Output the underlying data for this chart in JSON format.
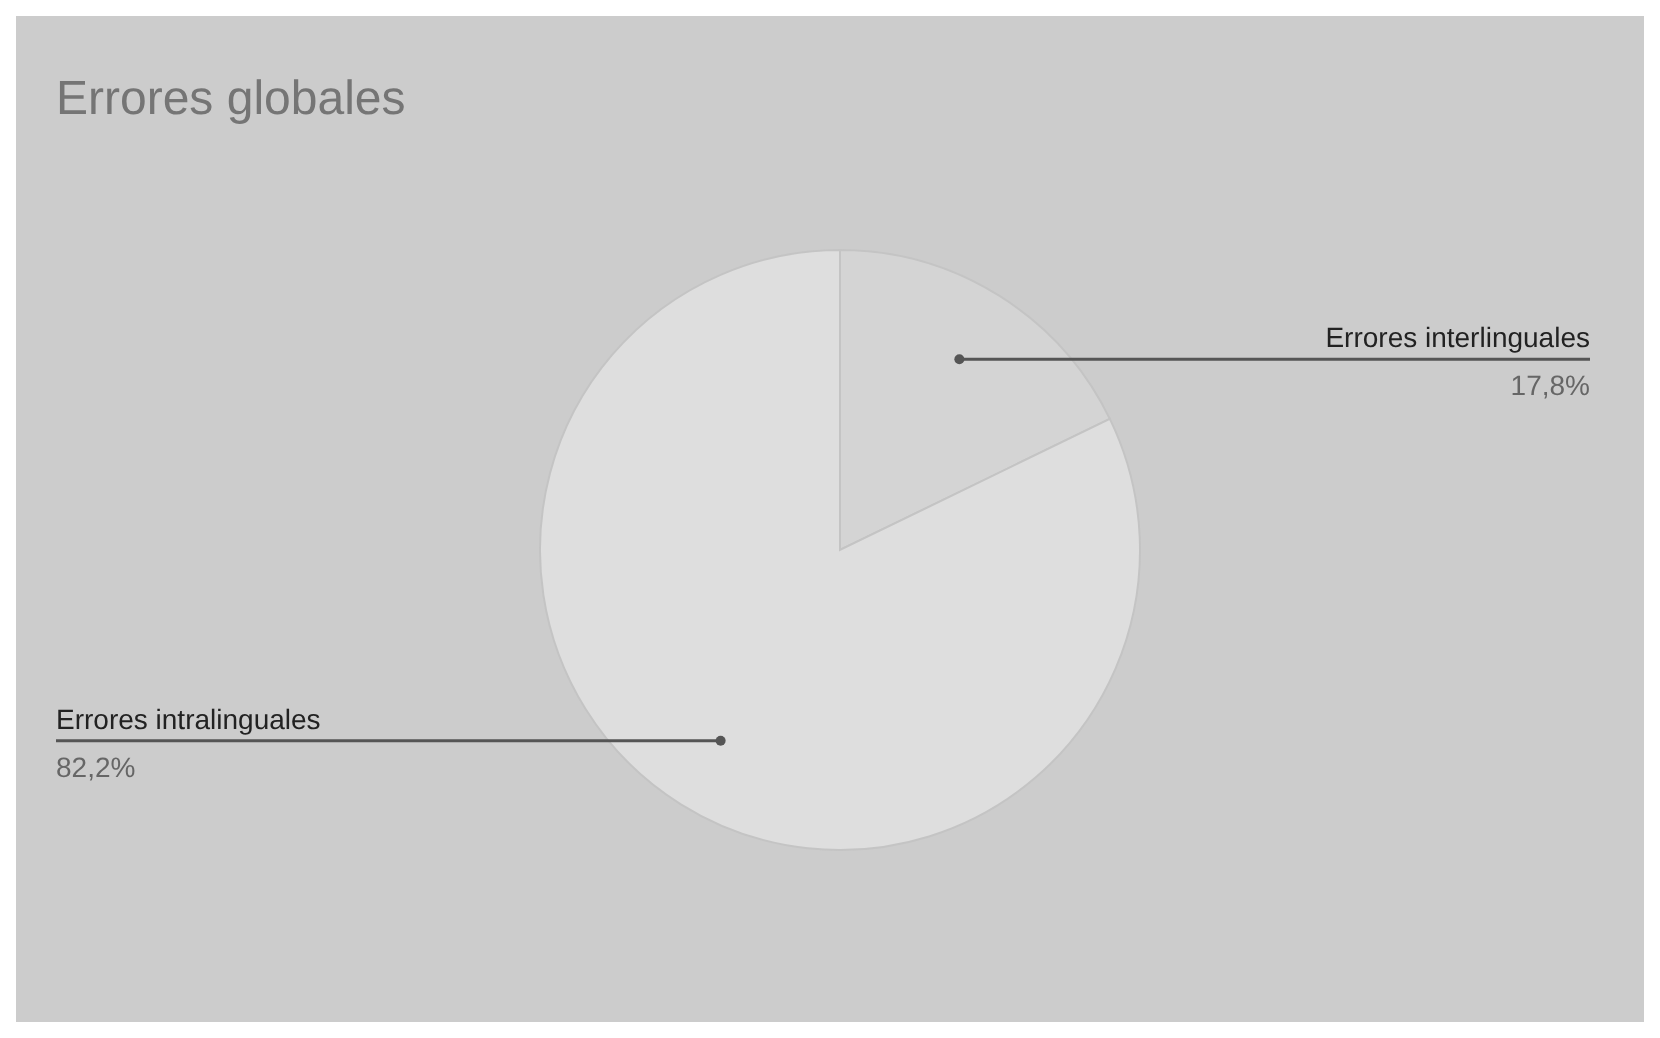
{
  "chart_data": {
    "type": "pie",
    "title": "Errores globales",
    "categories": [
      "Errores interlinguales",
      "Errores intralinguales"
    ],
    "values": [
      17.8,
      82.2
    ],
    "value_labels": [
      "17,8%",
      "82,2%"
    ],
    "colors": [
      "#d4d4d4",
      "#dedede"
    ],
    "legend": false
  }
}
